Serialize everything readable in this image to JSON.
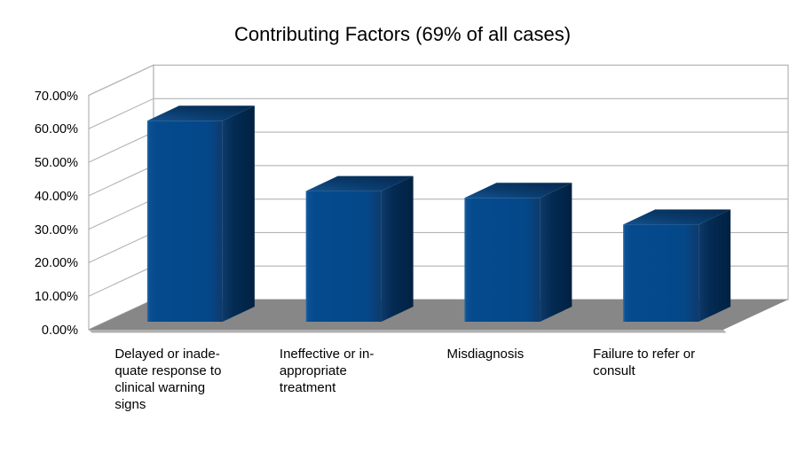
{
  "chart_data": {
    "type": "bar",
    "style": "3d-bar",
    "title": "Contributing Factors (69% of all cases)",
    "categories": [
      "Delayed or inadequate response to clinical warning signs",
      "Ineffective or inappropriate treatment",
      "Misdiagnosis",
      "Failure to refer or consult"
    ],
    "values": [
      60,
      39,
      37,
      29
    ],
    "unit": "%",
    "xlabel": "",
    "ylabel": "",
    "ylim": [
      0,
      70
    ],
    "yticks": [
      {
        "value": 70,
        "label": "70.00%"
      },
      {
        "value": 60,
        "label": "60.00%"
      },
      {
        "value": 50,
        "label": "50.00%"
      },
      {
        "value": 40,
        "label": "40.00%"
      },
      {
        "value": 30,
        "label": "30.00%"
      },
      {
        "value": 20,
        "label": "20.00%"
      },
      {
        "value": 10,
        "label": "10.00%"
      },
      {
        "value": 0,
        "label": "0.00%"
      }
    ],
    "grid": true,
    "legend": false,
    "colors": {
      "bar_front": "#03498c",
      "bar_side": "#032a52",
      "bar_top": "#0d4273",
      "floor": "#878787",
      "floor_edge": "#b0b0b0",
      "gridline": "#b3b3b3",
      "wall": "#ffffff",
      "text": "#000000",
      "background": "#ffffff"
    }
  },
  "axis": {
    "categories_display": [
      "Delayed or inade-\nquate response to\nclinical warning\nsigns",
      "Ineffective or in-\nappropriate\ntreatment",
      "Misdiagnosis",
      "Failure to refer or\nconsult"
    ]
  }
}
